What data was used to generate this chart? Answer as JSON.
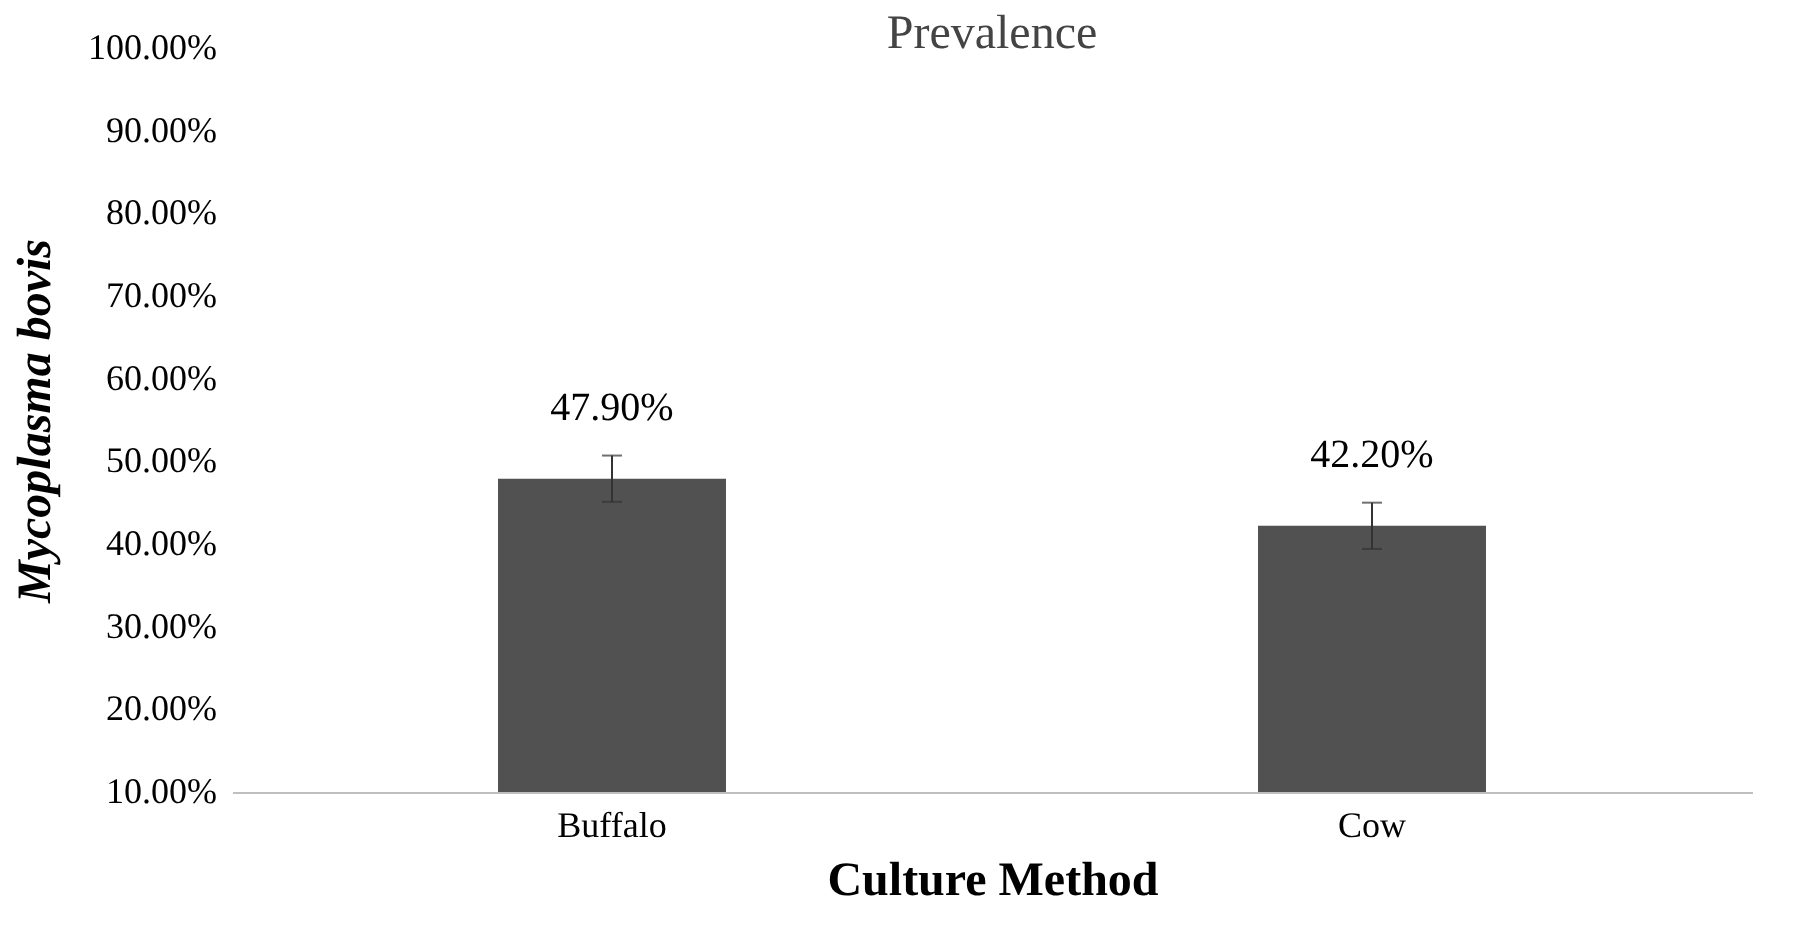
{
  "chart_data": {
    "type": "bar",
    "title": "Prevalence",
    "xlabel": "Culture Method",
    "ylabel": "Mycoplasma bovis",
    "categories": [
      "Buffalo",
      "Cow"
    ],
    "values": [
      47.9,
      42.2
    ],
    "errors": [
      2.8,
      2.8
    ],
    "value_labels": [
      "47.90%",
      "42.20%"
    ],
    "color": "#515151",
    "ylim": [
      10,
      100
    ],
    "yticks": [
      {
        "value": 10,
        "label": "10.00%"
      },
      {
        "value": 20,
        "label": "20.00%"
      },
      {
        "value": 30,
        "label": "30.00%"
      },
      {
        "value": 40,
        "label": "40.00%"
      },
      {
        "value": 50,
        "label": "50.00%"
      },
      {
        "value": 60,
        "label": "60.00%"
      },
      {
        "value": 70,
        "label": "70.00%"
      },
      {
        "value": 80,
        "label": "80.00%"
      },
      {
        "value": 90,
        "label": "90.00%"
      },
      {
        "value": 100,
        "label": "100.00%"
      }
    ],
    "grid": false
  }
}
